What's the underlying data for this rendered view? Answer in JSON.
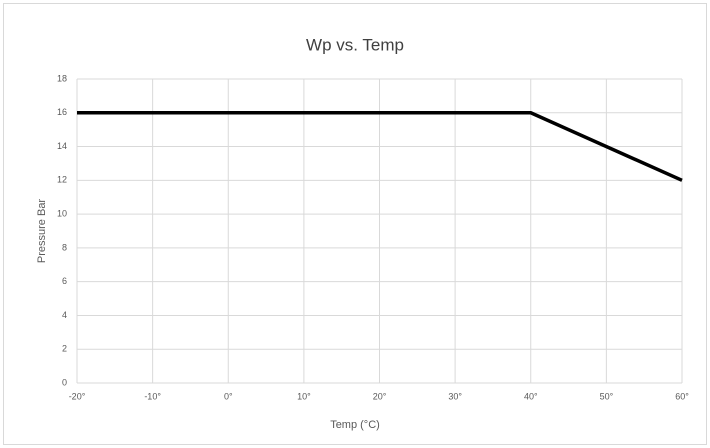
{
  "chart_data": {
    "type": "line",
    "title": "Wp vs. Temp",
    "x_label": "Temp (°C)",
    "y_label": "Pressure Bar",
    "x": [
      -20,
      40,
      60
    ],
    "values": [
      16,
      16,
      12
    ],
    "color": "#000000",
    "xlim": [
      -20,
      60
    ],
    "xticks": [
      {
        "value": -20,
        "label": "-20°"
      },
      {
        "value": -10,
        "label": "-10°"
      },
      {
        "value": 0,
        "label": "0°"
      },
      {
        "value": 10,
        "label": "10°"
      },
      {
        "value": 20,
        "label": "20°"
      },
      {
        "value": 30,
        "label": "30°"
      },
      {
        "value": 40,
        "label": "40°"
      },
      {
        "value": 50,
        "label": "50°"
      },
      {
        "value": 60,
        "label": "60°"
      }
    ],
    "ylim": [
      0,
      18
    ],
    "yticks": [
      0,
      2,
      4,
      6,
      8,
      10,
      12,
      14,
      16,
      18
    ],
    "grid": true
  }
}
